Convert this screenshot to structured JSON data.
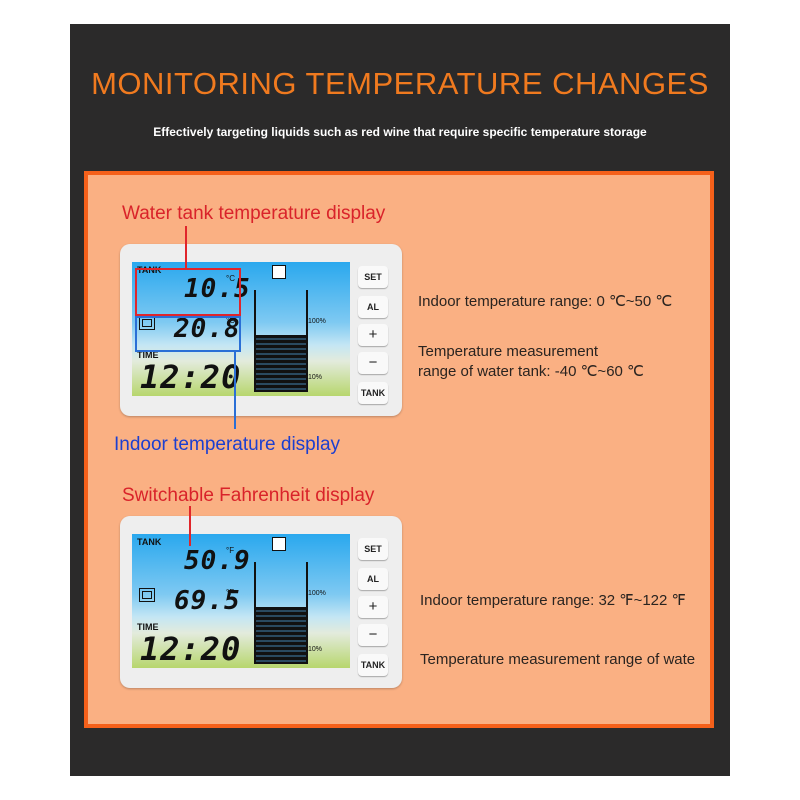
{
  "header": {
    "title": "MONITORING TEMPERATURE CHANGES",
    "subtitle": "Effectively targeting liquids such as red wine that require specific temperature storage"
  },
  "callouts": {
    "water_tank": "Water tank temperature display",
    "indoor": "Indoor temperature display",
    "fahrenheit": "Switchable Fahrenheit display"
  },
  "specs": {
    "indoor_c": "Indoor temperature range: 0 ℃~50 ℃",
    "tank_c_line1": "Temperature measurement",
    "tank_c_line2": " range of water tank: -40 ℃~60 ℃",
    "indoor_f": "Indoor temperature range: 32 ℉~122 ℉",
    "tank_f": "Temperature measurement range of wate"
  },
  "device_c": {
    "tank_label": "TANK",
    "tank_temp": "10.5",
    "tank_unit": "°C",
    "indoor_temp": "20.8",
    "indoor_unit": "°C",
    "time_label": "TIME",
    "time": "12:20",
    "pct_top": "100%",
    "pct_bottom": "10%",
    "water_level": 0.55,
    "buttons": [
      "SET",
      "AL",
      "+",
      "−",
      "TANK"
    ]
  },
  "device_f": {
    "tank_label": "TANK",
    "tank_temp": "50.9",
    "tank_unit": "°F",
    "indoor_temp": "69.5",
    "indoor_unit": "°F",
    "time_label": "TIME",
    "time": "12:20",
    "pct_top": "100%",
    "pct_bottom": "10%",
    "water_level": 0.55,
    "buttons": [
      "SET",
      "AL",
      "+",
      "−",
      "TANK"
    ]
  },
  "colors": {
    "title": "#f07a1f",
    "panel": "#fab083",
    "panel_border": "#f5601a",
    "red_callout": "#d9232a",
    "blue_callout": "#1c3fd0"
  }
}
